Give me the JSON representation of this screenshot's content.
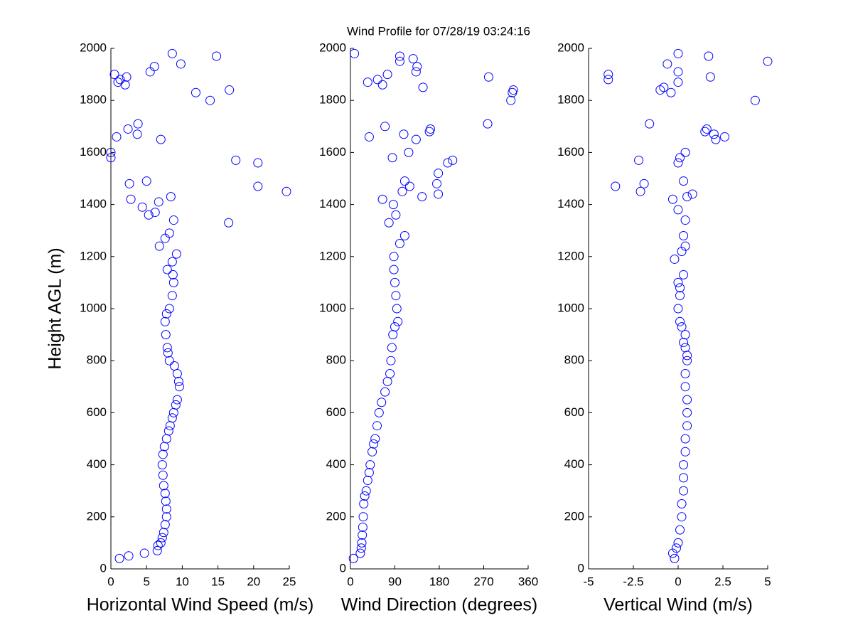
{
  "chart_data": [
    {
      "type": "scatter",
      "xlabel": "Horizontal Wind Speed (m/s)",
      "ylabel": "Height AGL (m)",
      "color": "#0000ff",
      "xlim": [
        0,
        25
      ],
      "xticks": [
        0,
        5,
        10,
        15,
        20,
        25
      ],
      "ylim": [
        0,
        2000
      ],
      "yticks": [
        0,
        200,
        400,
        600,
        800,
        1000,
        1200,
        1400,
        1600,
        1800,
        2000
      ],
      "x": [
        1.2,
        2.5,
        4.7,
        6.5,
        6.6,
        7.0,
        7.2,
        7.4,
        7.6,
        7.8,
        7.8,
        7.7,
        7.6,
        7.4,
        7.3,
        7.2,
        7.3,
        7.5,
        7.8,
        8.1,
        8.3,
        8.6,
        8.8,
        9.1,
        9.3,
        9.6,
        9.5,
        9.3,
        8.9,
        8.2,
        8.0,
        7.9,
        7.7,
        7.6,
        7.8,
        8.2,
        8.6,
        8.8,
        8.7,
        7.9,
        8.6,
        9.2,
        6.8,
        7.6,
        8.2,
        8.8,
        5.3,
        4.4,
        6.7,
        8.4,
        2.8,
        5.0,
        2.6,
        24.6,
        20.6,
        16.5,
        17.5,
        20.6,
        0.0,
        0.0,
        7.0,
        0.8,
        2.4,
        3.7,
        3.8,
        13.9,
        11.9,
        16.6,
        2.0,
        1.0,
        1.3,
        0.5,
        2.2,
        5.5,
        6.1,
        9.8,
        8.6,
        14.8,
        6.2
      ],
      "values": [
        40,
        50,
        60,
        70,
        90,
        100,
        120,
        140,
        170,
        200,
        230,
        260,
        290,
        320,
        360,
        400,
        440,
        470,
        500,
        530,
        550,
        580,
        600,
        630,
        650,
        700,
        720,
        750,
        780,
        800,
        830,
        850,
        900,
        950,
        980,
        1000,
        1050,
        1100,
        1130,
        1150,
        1180,
        1210,
        1240,
        1270,
        1290,
        1340,
        1360,
        1390,
        1410,
        1430,
        1420,
        1490,
        1480,
        1450,
        1470,
        1330,
        1570,
        1560,
        1580,
        1600,
        1650,
        1660,
        1690,
        1670,
        1710,
        1800,
        1830,
        1840,
        1860,
        1870,
        1880,
        1900,
        1890,
        1910,
        1930,
        1940,
        1980,
        1970,
        1370
      ]
    },
    {
      "type": "scatter",
      "title": "Wind Profile for  07/28/19 03:24:16",
      "xlabel": "Wind Direction (degrees)",
      "color": "#0000ff",
      "xlim": [
        0,
        360
      ],
      "xticks": [
        0,
        90,
        180,
        270,
        360
      ],
      "ylim": [
        0,
        2000
      ],
      "yticks": [
        0,
        200,
        400,
        600,
        800,
        1000,
        1200,
        1400,
        1600,
        1800,
        2000
      ],
      "x": [
        6,
        20,
        22,
        23,
        24,
        25,
        26,
        27,
        29,
        32,
        35,
        38,
        40,
        44,
        47,
        50,
        54,
        58,
        63,
        70,
        75,
        80,
        82,
        84,
        86,
        90,
        96,
        94,
        92,
        90,
        88,
        88,
        100,
        110,
        78,
        92,
        87,
        65,
        105,
        120,
        145,
        178,
        175,
        110,
        178,
        197,
        207,
        85,
        118,
        160,
        162,
        70,
        108,
        38,
        133,
        278,
        325,
        328,
        330,
        147,
        65,
        35,
        55,
        75,
        280,
        133,
        135,
        100,
        100,
        127,
        8
      ],
      "values": [
        40,
        60,
        80,
        100,
        130,
        160,
        200,
        250,
        280,
        300,
        340,
        370,
        400,
        450,
        480,
        500,
        550,
        600,
        640,
        680,
        720,
        750,
        800,
        850,
        900,
        930,
        950,
        1000,
        1050,
        1100,
        1150,
        1200,
        1250,
        1280,
        1330,
        1360,
        1400,
        1420,
        1450,
        1470,
        1430,
        1440,
        1480,
        1490,
        1520,
        1560,
        1570,
        1580,
        1600,
        1680,
        1690,
        1700,
        1670,
        1660,
        1650,
        1710,
        1800,
        1830,
        1840,
        1850,
        1860,
        1870,
        1880,
        1900,
        1890,
        1910,
        1930,
        1950,
        1970,
        1960,
        1980
      ]
    },
    {
      "type": "scatter",
      "xlabel": "Vertical Wind (m/s)",
      "color": "#0000ff",
      "xlim": [
        -5,
        5
      ],
      "xticks": [
        -5,
        -2.5,
        0,
        2.5,
        5
      ],
      "ylim": [
        0,
        2000
      ],
      "yticks": [
        0,
        200,
        400,
        600,
        800,
        1000,
        1200,
        1400,
        1600,
        1800,
        2000
      ],
      "x": [
        -0.2,
        -0.3,
        -0.1,
        0.0,
        0.1,
        0.2,
        0.2,
        0.3,
        0.3,
        0.3,
        0.4,
        0.4,
        0.5,
        0.5,
        0.5,
        0.4,
        0.4,
        0.5,
        0.5,
        0.4,
        0.3,
        0.4,
        0.2,
        0.1,
        0.0,
        0.1,
        0.1,
        0.0,
        0.3,
        -0.2,
        0.2,
        0.4,
        0.3,
        0.4,
        0.0,
        0.5,
        0.8,
        -0.3,
        -3.5,
        -2.1,
        -1.9,
        0.3,
        -2.2,
        0.0,
        0.4,
        0.1,
        -1.6,
        1.5,
        1.6,
        2.0,
        2.1,
        2.6,
        4.3,
        -0.4,
        -1.0,
        -0.8,
        0.0,
        1.8,
        0.0,
        -3.9,
        -3.9,
        -0.6,
        5.0,
        1.7,
        0.0
      ],
      "values": [
        40,
        60,
        80,
        100,
        150,
        200,
        250,
        300,
        350,
        400,
        450,
        500,
        550,
        600,
        650,
        700,
        750,
        800,
        820,
        850,
        870,
        900,
        930,
        950,
        1000,
        1050,
        1080,
        1100,
        1130,
        1190,
        1220,
        1240,
        1280,
        1340,
        1380,
        1430,
        1440,
        1420,
        1470,
        1450,
        1480,
        1490,
        1570,
        1560,
        1600,
        1580,
        1710,
        1680,
        1690,
        1670,
        1650,
        1660,
        1800,
        1830,
        1840,
        1850,
        1870,
        1890,
        1910,
        1880,
        1900,
        1940,
        1950,
        1970,
        1980
      ]
    }
  ]
}
